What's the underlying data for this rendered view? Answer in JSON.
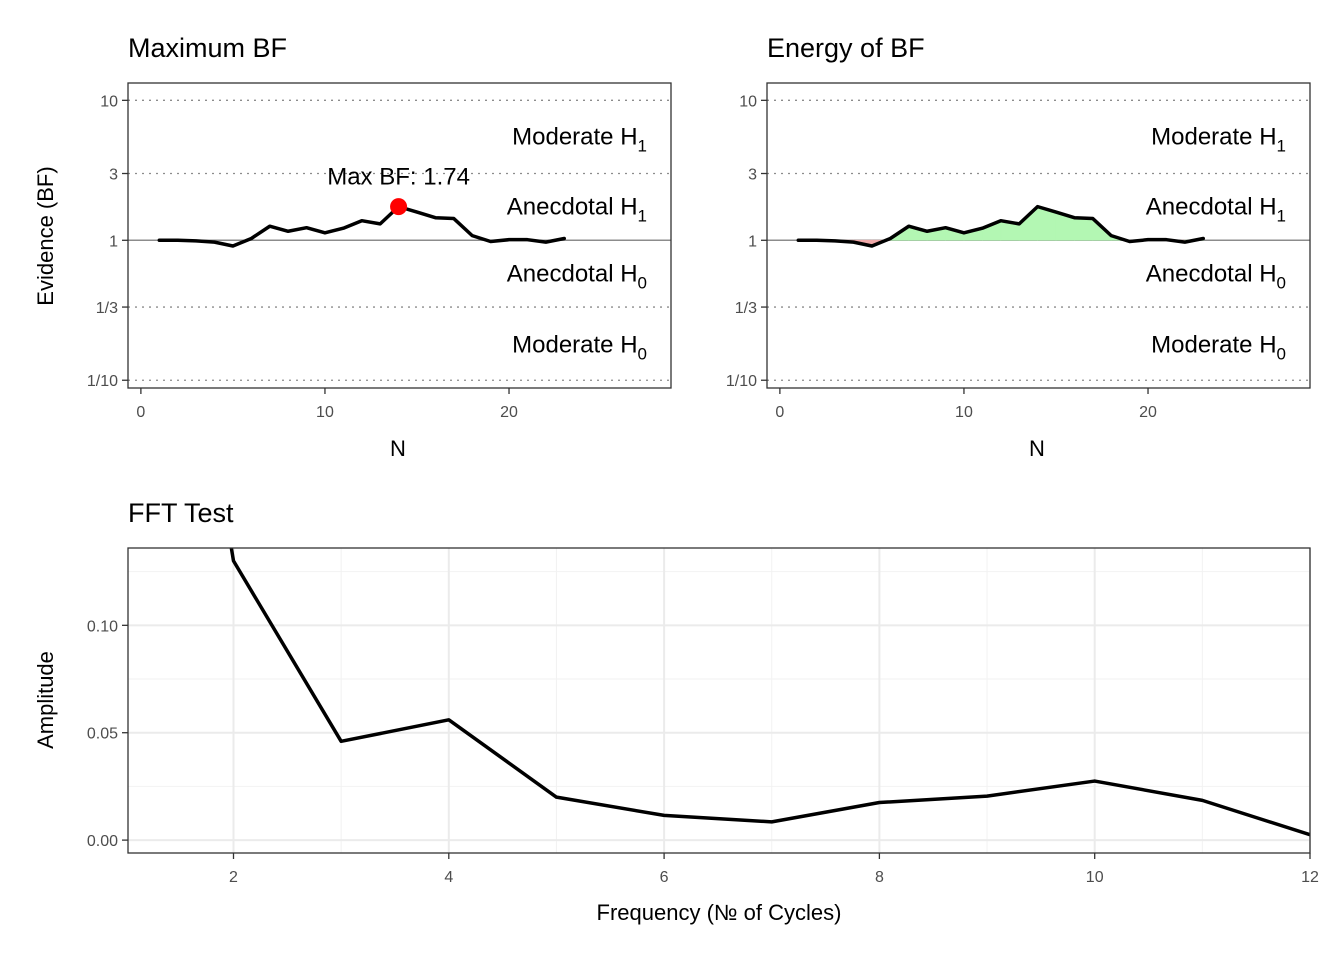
{
  "chart_data": [
    {
      "type": "line",
      "title": "Maximum BF",
      "xlabel": "N",
      "ylabel": "Evidence (BF)",
      "y_scale": "log",
      "xlim": [
        -0.7,
        28.8
      ],
      "ylim": [
        0.088,
        13.3
      ],
      "x_ticks": [
        0,
        10,
        20
      ],
      "y_ticks": [
        {
          "value": 0.1,
          "label": "1/10"
        },
        {
          "value": 0.3333,
          "label": "1/3"
        },
        {
          "value": 1,
          "label": "1"
        },
        {
          "value": 3,
          "label": "3"
        },
        {
          "value": 10,
          "label": "10"
        }
      ],
      "bands": [
        {
          "label": "Moderate H",
          "sub": "1",
          "y": 5.5
        },
        {
          "label": "Anecdotal H",
          "sub": "1",
          "y": 1.75
        },
        {
          "label": "Anecdotal H",
          "sub": "0",
          "y": 0.58
        },
        {
          "label": "Moderate H",
          "sub": "0",
          "y": 0.18
        }
      ],
      "series": [
        {
          "x": [
            1,
            2,
            3,
            4,
            5,
            6,
            7,
            8,
            9,
            10,
            11,
            12,
            13,
            14,
            15,
            16,
            17,
            18,
            19,
            20,
            21,
            22,
            23
          ],
          "values": [
            1.0,
            1.0,
            0.99,
            0.97,
            0.91,
            1.03,
            1.26,
            1.16,
            1.23,
            1.13,
            1.22,
            1.38,
            1.31,
            1.74,
            1.59,
            1.45,
            1.43,
            1.08,
            0.98,
            1.01,
            1.01,
            0.97,
            1.03
          ]
        }
      ],
      "annotation": {
        "text": "Max BF: 1.74",
        "x": 14,
        "y": 1.74
      }
    },
    {
      "type": "area",
      "title": "Energy of BF",
      "xlabel": "N",
      "ylabel": "",
      "y_scale": "log",
      "xlim": [
        -0.7,
        28.8
      ],
      "ylim": [
        0.088,
        13.3
      ],
      "x_ticks": [
        0,
        10,
        20
      ],
      "y_ticks": [
        {
          "value": 0.1,
          "label": "1/10"
        },
        {
          "value": 0.3333,
          "label": "1/3"
        },
        {
          "value": 1,
          "label": "1"
        },
        {
          "value": 3,
          "label": "3"
        },
        {
          "value": 10,
          "label": "10"
        }
      ],
      "bands": [
        {
          "label": "Moderate H",
          "sub": "1",
          "y": 5.5
        },
        {
          "label": "Anecdotal H",
          "sub": "1",
          "y": 1.75
        },
        {
          "label": "Anecdotal H",
          "sub": "0",
          "y": 0.58
        },
        {
          "label": "Moderate H",
          "sub": "0",
          "y": 0.18
        }
      ],
      "fill_above_color": "#b3f7b3",
      "fill_below_color": "#f0a9a9",
      "series": [
        {
          "x": [
            1,
            2,
            3,
            4,
            5,
            6,
            7,
            8,
            9,
            10,
            11,
            12,
            13,
            14,
            15,
            16,
            17,
            18,
            19,
            20,
            21,
            22,
            23
          ],
          "values": [
            1.0,
            1.0,
            0.99,
            0.97,
            0.91,
            1.03,
            1.26,
            1.16,
            1.23,
            1.13,
            1.22,
            1.38,
            1.31,
            1.74,
            1.59,
            1.45,
            1.43,
            1.08,
            0.98,
            1.01,
            1.01,
            0.97,
            1.03
          ]
        }
      ]
    },
    {
      "type": "line",
      "title": "FFT Test",
      "xlabel": "Frequency (№ of Cycles)",
      "ylabel": "Amplitude",
      "xlim": [
        1.02,
        12
      ],
      "ylim": [
        -0.006,
        0.136
      ],
      "x_ticks": [
        2,
        4,
        6,
        8,
        10,
        12
      ],
      "y_ticks": [
        {
          "value": 0.0,
          "label": "0.00"
        },
        {
          "value": 0.05,
          "label": "0.05"
        },
        {
          "value": 0.1,
          "label": "0.10"
        }
      ],
      "series": [
        {
          "x": [
            1.98,
            2,
            3,
            4,
            5,
            6,
            7,
            8,
            9,
            10,
            11,
            12
          ],
          "values": [
            0.136,
            0.13,
            0.046,
            0.056,
            0.02,
            0.0115,
            0.0085,
            0.0175,
            0.0205,
            0.0275,
            0.0185,
            0.0025
          ]
        }
      ]
    }
  ]
}
